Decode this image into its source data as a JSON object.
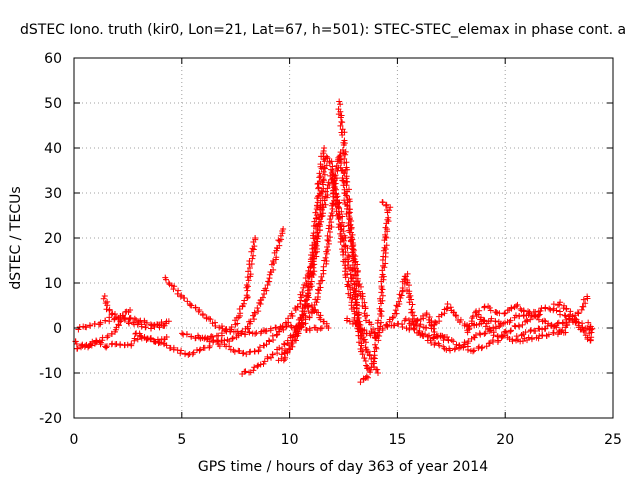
{
  "chart_data": {
    "type": "scatter",
    "title": "dSTEC Iono. truth (kir0, Lon=21, Lat=67, h=501): STEC-STEC_elemax in phase cont. a",
    "xlabel": "GPS time / hours of day 363 of year 2014",
    "ylabel": "dSTEC  / TECUs",
    "xlim": [
      0,
      25
    ],
    "ylim": [
      -20,
      60
    ],
    "x_ticks": [
      "0",
      "5",
      "10",
      "15",
      "20",
      "25"
    ],
    "y_ticks": [
      "-20",
      "-10",
      "0",
      "10",
      "20",
      "30",
      "40",
      "50",
      "60"
    ],
    "grid": true,
    "marker": "+",
    "color": "#ff0000",
    "series": [
      {
        "points": [
          [
            0,
            -3
          ],
          [
            0.5,
            -4
          ],
          [
            1,
            -3
          ],
          [
            1.5,
            -4
          ],
          [
            2,
            -3.5
          ],
          [
            2.5,
            -4
          ],
          [
            3,
            -2
          ],
          [
            3.5,
            -2.5
          ],
          [
            4,
            -3
          ],
          [
            4.3,
            -2
          ]
        ]
      },
      {
        "points": [
          [
            0.2,
            0
          ],
          [
            0.7,
            0.5
          ],
          [
            1.2,
            1
          ],
          [
            1.7,
            2
          ],
          [
            2.2,
            2.5
          ],
          [
            2.7,
            2
          ],
          [
            3.2,
            1.5
          ],
          [
            3.7,
            0.5
          ],
          [
            4.2,
            0.5
          ]
        ]
      },
      {
        "points": [
          [
            0.1,
            -4.5
          ],
          [
            0.6,
            -4
          ],
          [
            1.1,
            -3
          ],
          [
            1.6,
            -2
          ],
          [
            2,
            0
          ],
          [
            2.3,
            3
          ],
          [
            2.6,
            4
          ]
        ]
      },
      {
        "points": [
          [
            1.4,
            7
          ],
          [
            1.6,
            4
          ],
          [
            1.8,
            3
          ],
          [
            2.2,
            2
          ],
          [
            2.8,
            1
          ],
          [
            3.5,
            0
          ],
          [
            4.0,
            1
          ],
          [
            4.4,
            1.5
          ]
        ]
      },
      {
        "points": [
          [
            4.2,
            11
          ],
          [
            4.6,
            9
          ],
          [
            5.0,
            7
          ],
          [
            5.5,
            5
          ],
          [
            6.0,
            3
          ],
          [
            6.5,
            1
          ],
          [
            7.0,
            -0.5
          ],
          [
            7.5,
            -1
          ],
          [
            8.0,
            -1.2
          ],
          [
            8.5,
            -1
          ],
          [
            9.0,
            -0.5
          ],
          [
            9.5,
            0
          ],
          [
            10.0,
            0.2
          ],
          [
            10.5,
            0
          ],
          [
            11.0,
            -0.3
          ],
          [
            11.5,
            0
          ]
        ]
      },
      {
        "points": [
          [
            2.8,
            -1
          ],
          [
            3.3,
            -2
          ],
          [
            3.8,
            -3
          ],
          [
            4.3,
            -4
          ],
          [
            4.8,
            -5
          ],
          [
            5.3,
            -6
          ],
          [
            5.8,
            -5
          ],
          [
            6.3,
            -4
          ]
        ]
      },
      {
        "points": [
          [
            5.0,
            -1
          ],
          [
            5.5,
            -2
          ],
          [
            6.0,
            -2.5
          ],
          [
            6.5,
            -2
          ],
          [
            7.0,
            -1
          ],
          [
            7.5,
            1
          ],
          [
            8.0,
            7
          ],
          [
            8.2,
            15
          ],
          [
            8.4,
            20
          ]
        ]
      },
      {
        "points": [
          [
            5.8,
            -2
          ],
          [
            6.5,
            -3
          ],
          [
            7.0,
            -3
          ],
          [
            7.5,
            -2
          ],
          [
            8.0,
            0
          ],
          [
            8.5,
            4
          ],
          [
            9.0,
            10
          ],
          [
            9.4,
            17
          ],
          [
            9.7,
            22
          ]
        ]
      },
      {
        "points": [
          [
            6.5,
            -3
          ],
          [
            7.5,
            -5
          ],
          [
            8.0,
            -5.5
          ],
          [
            8.5,
            -5
          ],
          [
            9.0,
            -3
          ],
          [
            9.5,
            -1
          ],
          [
            10.0,
            2
          ],
          [
            10.5,
            6
          ],
          [
            11.0,
            14
          ],
          [
            11.5,
            25
          ],
          [
            11.8,
            32
          ],
          [
            12.0,
            34
          ],
          [
            12.3,
            27
          ],
          [
            12.6,
            18
          ],
          [
            13.0,
            8
          ],
          [
            13.3,
            0
          ],
          [
            13.6,
            -5
          ],
          [
            13.9,
            -8
          ],
          [
            14.1,
            -10
          ]
        ]
      },
      {
        "points": [
          [
            7.8,
            -10
          ],
          [
            8.2,
            -9.5
          ],
          [
            8.7,
            -8
          ],
          [
            9.2,
            -6
          ],
          [
            9.7,
            -4
          ],
          [
            10.2,
            -1
          ],
          [
            10.6,
            3
          ],
          [
            11.0,
            10
          ],
          [
            11.3,
            20
          ],
          [
            11.5,
            30
          ],
          [
            11.7,
            38
          ],
          [
            11.9,
            37
          ],
          [
            12.1,
            30
          ],
          [
            12.4,
            20
          ],
          [
            12.7,
            10
          ],
          [
            13.0,
            3
          ],
          [
            13.3,
            -2
          ]
        ]
      },
      {
        "points": [
          [
            9.5,
            -7
          ],
          [
            10.0,
            -4
          ],
          [
            10.5,
            0
          ],
          [
            11.0,
            3
          ],
          [
            11.3,
            7
          ],
          [
            11.6,
            13
          ],
          [
            11.9,
            23
          ],
          [
            12.1,
            33
          ],
          [
            12.3,
            39
          ],
          [
            12.5,
            32
          ],
          [
            12.8,
            22
          ],
          [
            13.2,
            10
          ],
          [
            13.6,
            2
          ],
          [
            14.0,
            -2
          ]
        ]
      },
      {
        "points": [
          [
            10.4,
            0
          ],
          [
            10.8,
            6
          ],
          [
            11.0,
            14
          ],
          [
            11.2,
            23
          ],
          [
            11.4,
            34
          ],
          [
            11.6,
            40
          ]
        ]
      },
      {
        "points": [
          [
            12.3,
            50
          ],
          [
            12.4,
            46
          ],
          [
            12.5,
            42
          ],
          [
            12.6,
            36
          ],
          [
            12.7,
            30
          ],
          [
            12.8,
            24
          ],
          [
            12.9,
            18
          ],
          [
            13.0,
            12
          ],
          [
            13.1,
            6
          ],
          [
            13.2,
            0
          ],
          [
            13.3,
            -4
          ],
          [
            13.4,
            -6
          ],
          [
            13.5,
            -7
          ],
          [
            13.6,
            -9
          ]
        ]
      },
      {
        "points": [
          [
            13.3,
            -12
          ],
          [
            13.6,
            -11
          ],
          [
            13.9,
            -7
          ],
          [
            14.1,
            -2
          ],
          [
            14.2,
            3
          ],
          [
            14.3,
            10
          ],
          [
            14.4,
            16
          ],
          [
            14.5,
            22
          ],
          [
            14.6,
            27
          ],
          [
            14.3,
            28
          ]
        ]
      },
      {
        "points": [
          [
            9.7,
            -7
          ],
          [
            10.0,
            -5
          ],
          [
            10.3,
            -2
          ],
          [
            10.6,
            2
          ],
          [
            10.9,
            5
          ],
          [
            11.2,
            4
          ],
          [
            11.5,
            2
          ],
          [
            11.8,
            0
          ]
        ]
      },
      {
        "points": [
          [
            12.6,
            2
          ],
          [
            13.0,
            1
          ],
          [
            13.5,
            -1
          ],
          [
            14.0,
            -2
          ],
          [
            14.5,
            1
          ],
          [
            14.9,
            3
          ],
          [
            15.2,
            8
          ],
          [
            15.4,
            12
          ],
          [
            15.6,
            6
          ],
          [
            15.8,
            0
          ]
        ]
      },
      {
        "points": [
          [
            14.5,
            0
          ],
          [
            15.0,
            1
          ],
          [
            15.5,
            0
          ],
          [
            16.0,
            -1
          ],
          [
            16.5,
            -2
          ],
          [
            17.0,
            -2
          ],
          [
            17.5,
            -3
          ],
          [
            18.0,
            -4
          ],
          [
            18.5,
            -5
          ],
          [
            19.0,
            -4
          ],
          [
            19.5,
            -3
          ],
          [
            20.0,
            -2
          ],
          [
            20.5,
            -3
          ],
          [
            21.0,
            -2.5
          ],
          [
            21.5,
            -2
          ],
          [
            22.0,
            -1.5
          ],
          [
            22.5,
            -1
          ],
          [
            23.0,
            1
          ],
          [
            23.5,
            4
          ],
          [
            23.8,
            7
          ]
        ]
      },
      {
        "points": [
          [
            15.8,
            1
          ],
          [
            16.3,
            0
          ],
          [
            16.8,
            1
          ],
          [
            17.2,
            4
          ],
          [
            17.4,
            5
          ],
          [
            17.8,
            2
          ],
          [
            18.3,
            0
          ],
          [
            18.8,
            1
          ],
          [
            19.3,
            2
          ],
          [
            19.8,
            1
          ]
        ]
      },
      {
        "points": [
          [
            16.0,
            -1
          ],
          [
            16.5,
            -3
          ],
          [
            17.0,
            -4
          ],
          [
            17.5,
            -5
          ],
          [
            18.0,
            -4
          ],
          [
            18.5,
            -2
          ],
          [
            19.0,
            -1
          ],
          [
            19.5,
            0
          ],
          [
            20.0,
            1
          ],
          [
            20.5,
            2.5
          ],
          [
            21.0,
            3
          ],
          [
            21.5,
            4
          ],
          [
            22.0,
            4.5
          ],
          [
            22.5,
            3.5
          ],
          [
            23.0,
            2
          ]
        ]
      },
      {
        "points": [
          [
            18.2,
            -1
          ],
          [
            18.5,
            2
          ],
          [
            18.7,
            4
          ],
          [
            18.9,
            2
          ],
          [
            19.2,
            0
          ],
          [
            19.6,
            -2
          ],
          [
            20.0,
            -1
          ],
          [
            20.4,
            0
          ],
          [
            20.8,
            1
          ],
          [
            21.2,
            2
          ],
          [
            21.6,
            3
          ]
        ]
      },
      {
        "points": [
          [
            15.3,
            2
          ],
          [
            15.7,
            1
          ],
          [
            16.1,
            2
          ],
          [
            16.4,
            3
          ],
          [
            16.7,
            -1
          ],
          [
            17.0,
            -2
          ],
          [
            17.3,
            -2
          ]
        ]
      },
      {
        "points": [
          [
            19.0,
            5
          ],
          [
            19.4,
            4
          ],
          [
            19.8,
            3
          ],
          [
            20.2,
            4
          ],
          [
            20.5,
            5
          ],
          [
            20.8,
            4
          ],
          [
            21.2,
            3
          ],
          [
            21.6,
            2
          ],
          [
            22.0,
            1
          ],
          [
            22.4,
            0
          ],
          [
            22.8,
            -1
          ]
        ]
      },
      {
        "points": [
          [
            22.3,
            5
          ],
          [
            22.6,
            5.5
          ],
          [
            22.9,
            4
          ],
          [
            23.2,
            2
          ],
          [
            23.5,
            0
          ],
          [
            23.8,
            -2
          ],
          [
            24.0,
            -3
          ],
          [
            23.9,
            1
          ],
          [
            24.0,
            -1
          ]
        ]
      },
      {
        "points": [
          [
            20.6,
            -2
          ],
          [
            21.0,
            -1
          ],
          [
            21.4,
            -0.5
          ],
          [
            21.8,
            0
          ],
          [
            22.2,
            0.5
          ],
          [
            22.6,
            1
          ],
          [
            23.0,
            2
          ],
          [
            23.4,
            1
          ],
          [
            23.8,
            0
          ]
        ]
      }
    ]
  }
}
